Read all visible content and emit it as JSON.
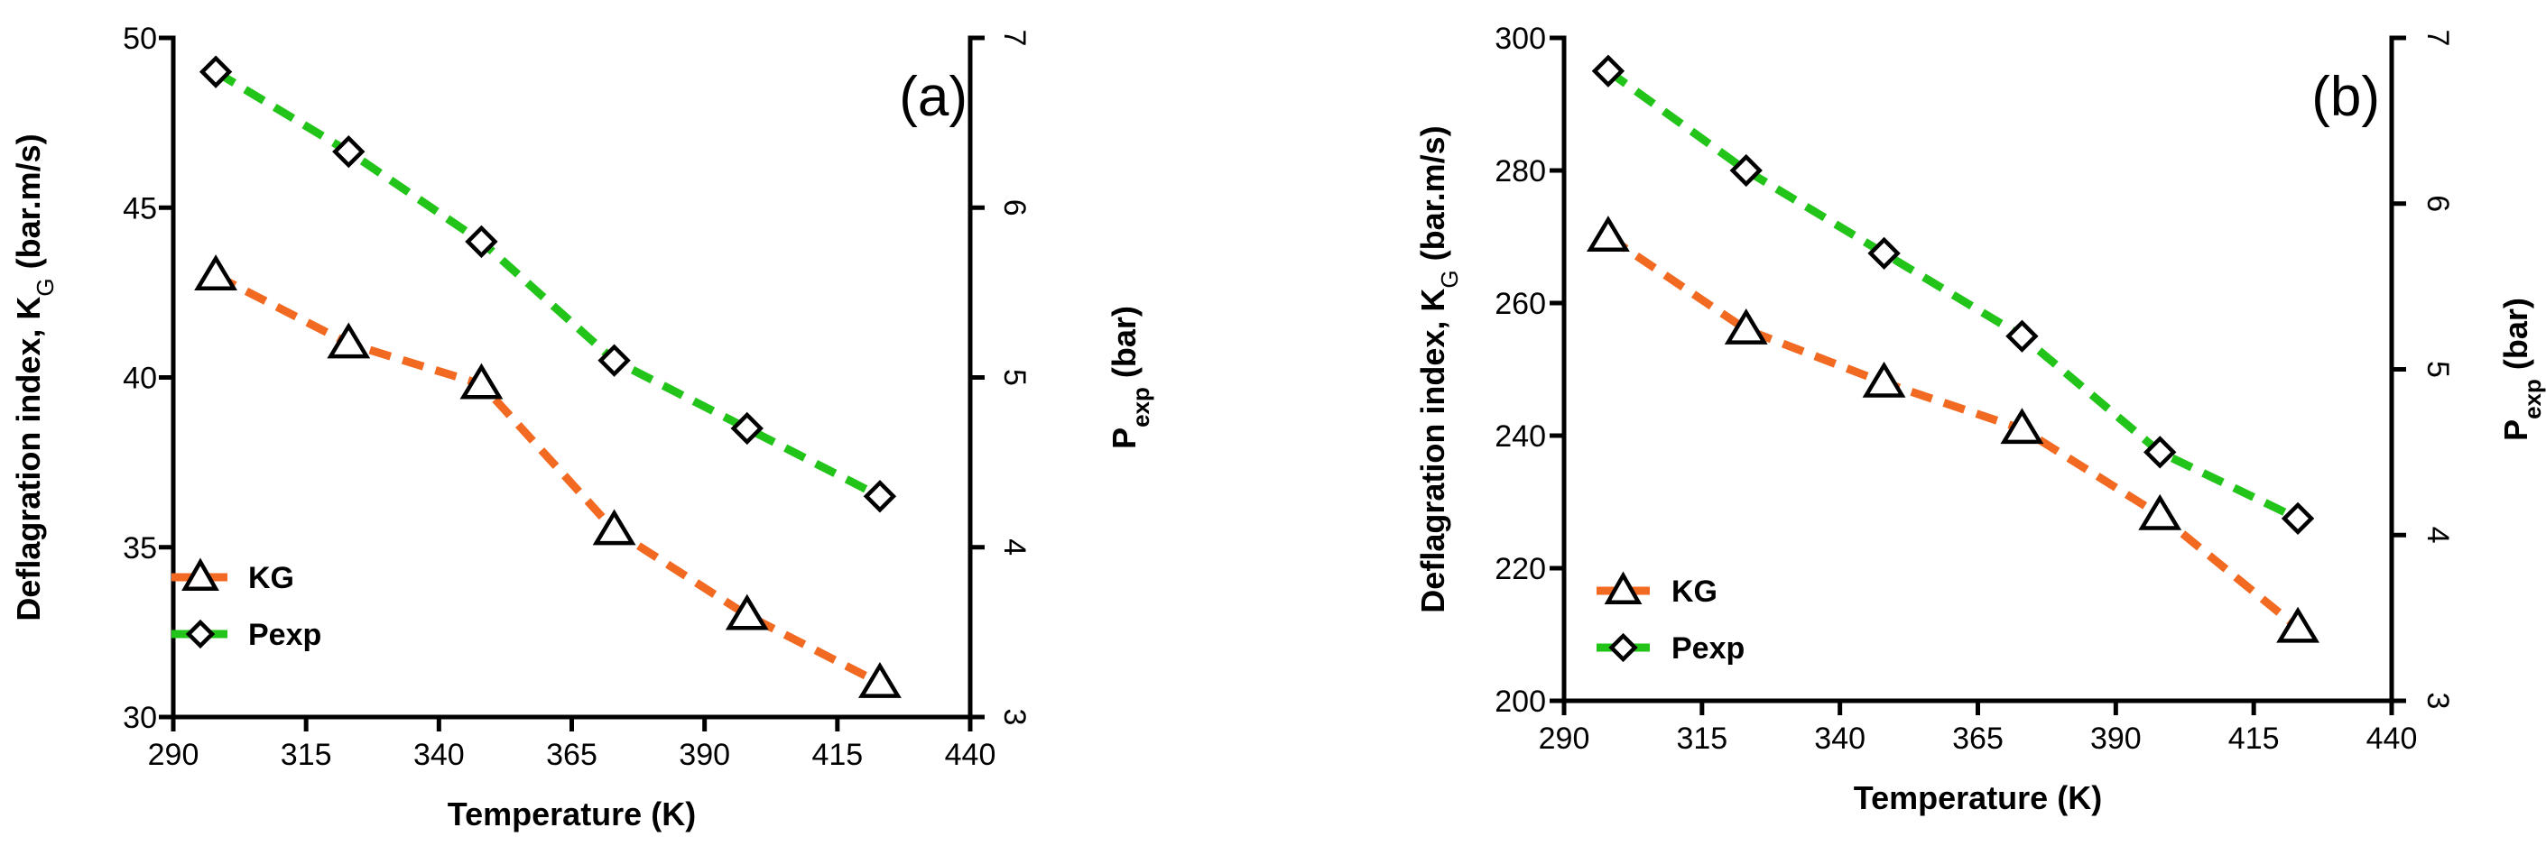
{
  "chart_data": [
    {
      "type": "line",
      "panel_label": "(a)",
      "xlabel": "Temperature (K)",
      "ylabel": "Deflagration index, K",
      "ylabel_sub": "G",
      "ylabel_tail": " (bar.m/s)",
      "y2label": "P",
      "y2label_sub": "exp",
      "y2label_tail": " (bar)",
      "xlim": [
        290,
        440
      ],
      "ylim": [
        30,
        50
      ],
      "y2lim": [
        3,
        7
      ],
      "xticks": [
        290,
        315,
        340,
        365,
        390,
        415,
        440
      ],
      "yticks": [
        30,
        35,
        40,
        45,
        50
      ],
      "y2ticks": [
        3,
        4,
        5,
        6,
        7
      ],
      "legend_position": "bottom-left",
      "series": [
        {
          "name": "KG",
          "axis": "left",
          "color": "#f26a21",
          "marker": "triangle",
          "x": [
            298,
            323,
            348,
            373,
            398,
            423
          ],
          "values": [
            43.0,
            41.0,
            39.8,
            35.5,
            33.0,
            31.0
          ]
        },
        {
          "name": "Pexp",
          "axis": "right",
          "color": "#22c41a",
          "marker": "diamond",
          "x": [
            298,
            323,
            348,
            373,
            398,
            423
          ],
          "values": [
            6.8,
            6.33,
            5.8,
            5.1,
            4.7,
            4.3
          ]
        }
      ]
    },
    {
      "type": "line",
      "panel_label": "(b)",
      "xlabel": "Temperature (K)",
      "ylabel": "Deflagration index, K",
      "ylabel_sub": "G",
      "ylabel_tail": " (bar.m/s)",
      "y2label": "P",
      "y2label_sub": "exp",
      "y2label_tail": " (bar)",
      "xlim": [
        290,
        440
      ],
      "ylim": [
        200,
        300
      ],
      "y2lim": [
        3,
        7
      ],
      "xticks": [
        290,
        315,
        340,
        365,
        390,
        415,
        440
      ],
      "yticks": [
        200,
        220,
        240,
        260,
        280,
        300
      ],
      "y2ticks": [
        3,
        4,
        5,
        6,
        7
      ],
      "legend_position": "bottom-left",
      "series": [
        {
          "name": "KG",
          "axis": "left",
          "color": "#f26a21",
          "marker": "triangle",
          "x": [
            298,
            323,
            348,
            373,
            398,
            423
          ],
          "values": [
            270,
            256,
            248,
            241,
            228,
            211
          ]
        },
        {
          "name": "Pexp",
          "axis": "right",
          "color": "#22c41a",
          "marker": "diamond",
          "x": [
            298,
            323,
            348,
            373,
            398,
            423
          ],
          "values": [
            6.8,
            6.2,
            5.7,
            5.2,
            4.5,
            4.1
          ]
        }
      ]
    }
  ]
}
